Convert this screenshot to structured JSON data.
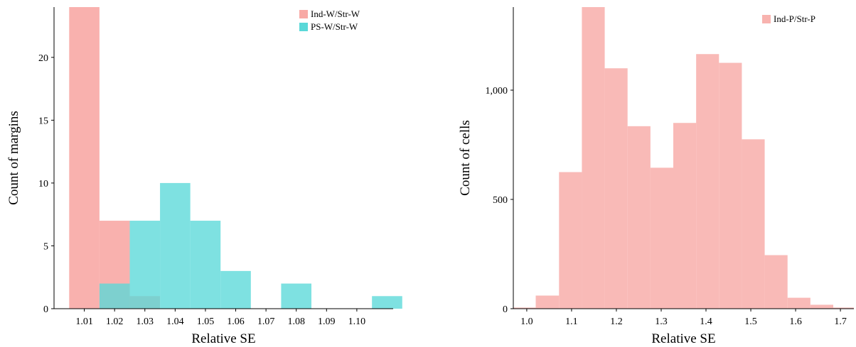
{
  "chart_data": [
    {
      "type": "bar",
      "xlabel": "Relative SE",
      "ylabel": "Count of margins",
      "xlim": [
        1.0,
        1.112
      ],
      "ylim": [
        0,
        24
      ],
      "xticks": [
        1.01,
        1.02,
        1.03,
        1.04,
        1.05,
        1.06,
        1.07,
        1.08,
        1.09,
        1.1
      ],
      "xtick_labels": [
        "1.01",
        "1.02",
        "1.03",
        "1.04",
        "1.05",
        "1.06",
        "1.07",
        "1.08",
        "1.09",
        "1.10"
      ],
      "yticks": [
        0,
        5,
        10,
        15,
        20
      ],
      "ytick_labels": [
        "0",
        "5",
        "10",
        "15",
        "20"
      ],
      "grid": false,
      "legend_position": "top-right",
      "series": [
        {
          "name": "Ind-W/Str-W",
          "color": "#f8a9a5",
          "bins": [
            {
              "x0": 1.005,
              "x1": 1.015,
              "value": 25
            },
            {
              "x0": 1.015,
              "x1": 1.025,
              "value": 7
            },
            {
              "x0": 1.025,
              "x1": 1.035,
              "value": 1
            }
          ]
        },
        {
          "name": "PS-W/Str-W",
          "color": "#5ad8d8",
          "bins": [
            {
              "x0": 1.015,
              "x1": 1.025,
              "value": 2
            },
            {
              "x0": 1.025,
              "x1": 1.035,
              "value": 7
            },
            {
              "x0": 1.035,
              "x1": 1.045,
              "value": 10
            },
            {
              "x0": 1.045,
              "x1": 1.055,
              "value": 7
            },
            {
              "x0": 1.055,
              "x1": 1.065,
              "value": 3
            },
            {
              "x0": 1.065,
              "x1": 1.075,
              "value": 0
            },
            {
              "x0": 1.075,
              "x1": 1.085,
              "value": 2
            },
            {
              "x0": 1.085,
              "x1": 1.095,
              "value": 0
            },
            {
              "x0": 1.095,
              "x1": 1.105,
              "value": 0
            },
            {
              "x0": 1.105,
              "x1": 1.115,
              "value": 1
            }
          ]
        }
      ]
    },
    {
      "type": "bar",
      "xlabel": "Relative SE",
      "ylabel": "Count of cells",
      "xlim": [
        0.97,
        1.73
      ],
      "ylim": [
        0,
        1380
      ],
      "xticks": [
        1.0,
        1.1,
        1.2,
        1.3,
        1.4,
        1.5,
        1.6,
        1.7
      ],
      "xtick_labels": [
        "1.0",
        "1.1",
        "1.2",
        "1.3",
        "1.4",
        "1.5",
        "1.6",
        "1.7"
      ],
      "yticks": [
        0,
        500,
        1000
      ],
      "ytick_labels": [
        "0",
        "500",
        "1,000"
      ],
      "grid": false,
      "legend_position": "top-right",
      "series": [
        {
          "name": "Ind-P/Str-P",
          "color": "#f8b3af",
          "bins": [
            {
              "x0": 0.97,
              "x1": 1.02,
              "value": 5
            },
            {
              "x0": 1.02,
              "x1": 1.072,
              "value": 60
            },
            {
              "x0": 1.072,
              "x1": 1.123,
              "value": 625
            },
            {
              "x0": 1.123,
              "x1": 1.174,
              "value": 1390
            },
            {
              "x0": 1.174,
              "x1": 1.225,
              "value": 1100
            },
            {
              "x0": 1.225,
              "x1": 1.276,
              "value": 835
            },
            {
              "x0": 1.276,
              "x1": 1.327,
              "value": 645
            },
            {
              "x0": 1.327,
              "x1": 1.378,
              "value": 850
            },
            {
              "x0": 1.378,
              "x1": 1.429,
              "value": 1165
            },
            {
              "x0": 1.429,
              "x1": 1.48,
              "value": 1125
            },
            {
              "x0": 1.48,
              "x1": 1.531,
              "value": 775
            },
            {
              "x0": 1.531,
              "x1": 1.582,
              "value": 245
            },
            {
              "x0": 1.582,
              "x1": 1.633,
              "value": 50
            },
            {
              "x0": 1.633,
              "x1": 1.684,
              "value": 18
            },
            {
              "x0": 1.684,
              "x1": 1.73,
              "value": 5
            }
          ]
        }
      ]
    }
  ]
}
